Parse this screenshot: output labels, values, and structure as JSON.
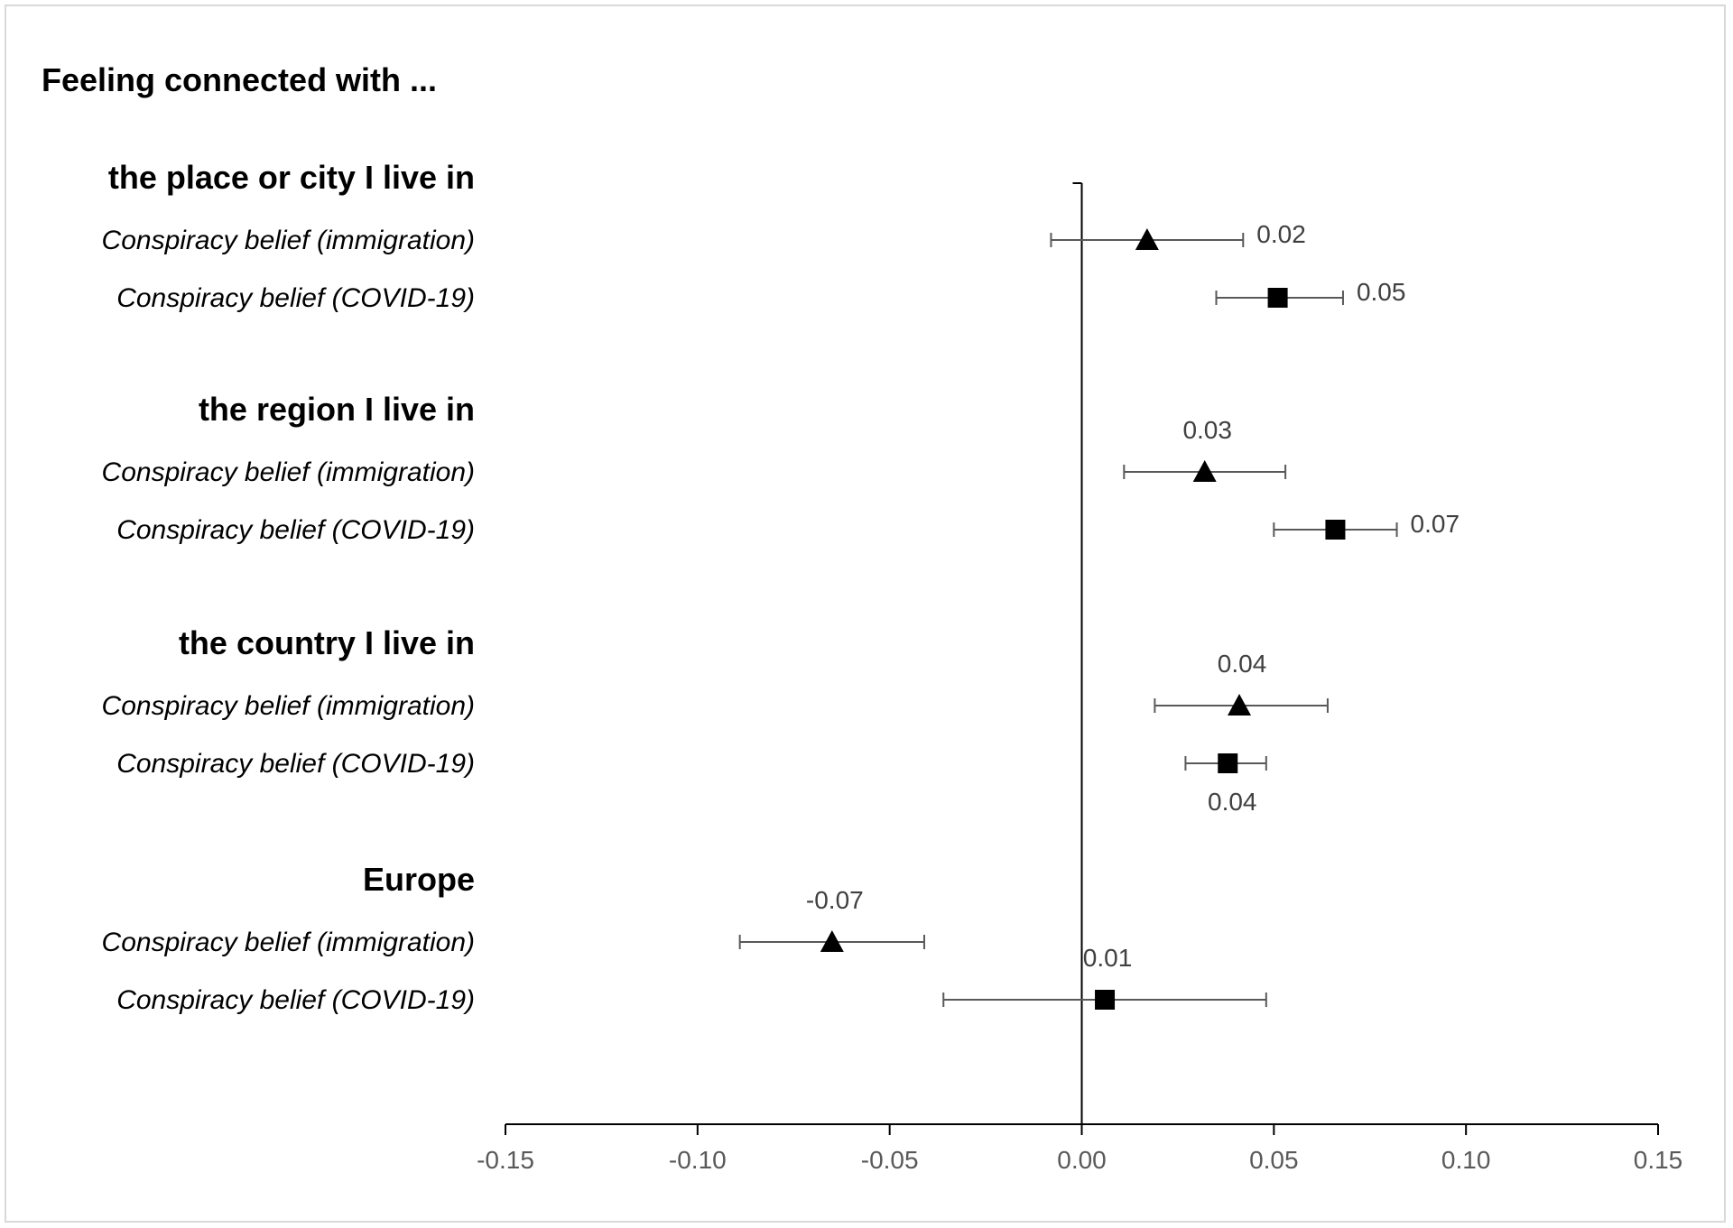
{
  "chart_data": {
    "type": "scatter",
    "title": "Feeling connected with ...",
    "xlabel": "",
    "ylabel": "",
    "xlim": [
      -0.15,
      0.15
    ],
    "x_ticks": [
      "-0.15",
      "-0.10",
      "-0.05",
      "0.00",
      "0.05",
      "0.10",
      "0.15"
    ],
    "x_tick_values": [
      -0.15,
      -0.1,
      -0.05,
      0.0,
      0.05,
      0.1,
      0.15
    ],
    "grid": false,
    "legend": "none",
    "marker_color": "#000000",
    "errorbar_color": "#595959",
    "groups": [
      {
        "label": "the place or city I live in",
        "rows": [
          {
            "label": "Conspiracy belief (immigration)",
            "marker": "triangle",
            "value": 0.017,
            "ci": [
              -0.008,
              0.042
            ],
            "value_label": "0.02",
            "label_pos": "right"
          },
          {
            "label": "Conspiracy belief (COVID-19)",
            "marker": "square",
            "value": 0.051,
            "ci": [
              0.035,
              0.068
            ],
            "value_label": "0.05",
            "label_pos": "right"
          }
        ]
      },
      {
        "label": "the region I live in",
        "rows": [
          {
            "label": "Conspiracy belief (immigration)",
            "marker": "triangle",
            "value": 0.032,
            "ci": [
              0.011,
              0.053
            ],
            "value_label": "0.03",
            "label_pos": "above"
          },
          {
            "label": "Conspiracy belief (COVID-19)",
            "marker": "square",
            "value": 0.066,
            "ci": [
              0.05,
              0.082
            ],
            "value_label": "0.07",
            "label_pos": "right"
          }
        ]
      },
      {
        "label": "the country I live in",
        "rows": [
          {
            "label": "Conspiracy belief (immigration)",
            "marker": "triangle",
            "value": 0.041,
            "ci": [
              0.019,
              0.064
            ],
            "value_label": "0.04",
            "label_pos": "above"
          },
          {
            "label": "Conspiracy belief (COVID-19)",
            "marker": "square",
            "value": 0.038,
            "ci": [
              0.027,
              0.048
            ],
            "value_label": "0.04",
            "label_pos": "below"
          }
        ]
      },
      {
        "label": "Europe",
        "rows": [
          {
            "label": "Conspiracy belief (immigration)",
            "marker": "triangle",
            "value": -0.065,
            "ci": [
              -0.089,
              -0.041
            ],
            "value_label": "-0.07",
            "label_pos": "above"
          },
          {
            "label": "Conspiracy belief (COVID-19)",
            "marker": "square",
            "value": 0.006,
            "ci": [
              -0.036,
              0.048
            ],
            "value_label": "0.01",
            "label_pos": "above"
          }
        ]
      }
    ]
  }
}
